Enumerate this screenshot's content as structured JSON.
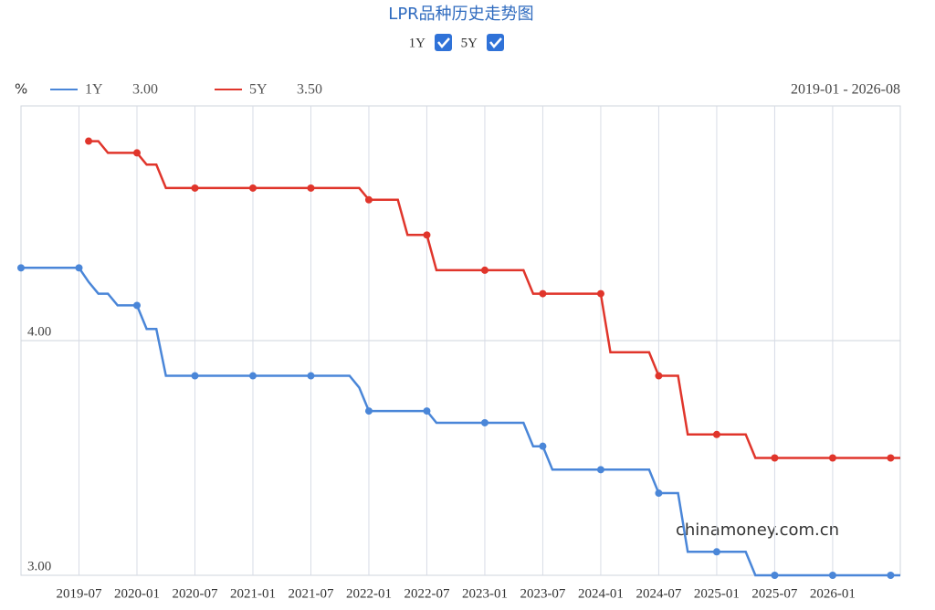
{
  "chart_data": {
    "type": "line",
    "title": "LPR品种历史走势图",
    "toggles": [
      {
        "label": "1Y",
        "checked": true
      },
      {
        "label": "5Y",
        "checked": true
      }
    ],
    "y_unit": "%",
    "range": "2019-01 - 2026-08",
    "watermark": "chinamoney.com.cn",
    "x": [
      "2019-01",
      "2019-02",
      "2019-03",
      "2019-04",
      "2019-05",
      "2019-06",
      "2019-07",
      "2019-08",
      "2019-09",
      "2019-10",
      "2019-11",
      "2019-12",
      "2020-01",
      "2020-02",
      "2020-03",
      "2020-04",
      "2020-05",
      "2020-06",
      "2020-07",
      "2020-08",
      "2020-09",
      "2020-10",
      "2020-11",
      "2020-12",
      "2021-01",
      "2021-02",
      "2021-03",
      "2021-04",
      "2021-05",
      "2021-06",
      "2021-07",
      "2021-08",
      "2021-09",
      "2021-10",
      "2021-11",
      "2021-12",
      "2022-01",
      "2022-02",
      "2022-03",
      "2022-04",
      "2022-05",
      "2022-06",
      "2022-07",
      "2022-08",
      "2022-09",
      "2022-10",
      "2022-11",
      "2022-12",
      "2023-01",
      "2023-02",
      "2023-03",
      "2023-04",
      "2023-05",
      "2023-06",
      "2023-07",
      "2023-08",
      "2023-09",
      "2023-10",
      "2023-11",
      "2023-12",
      "2024-01",
      "2024-02",
      "2024-03",
      "2024-04",
      "2024-05",
      "2024-06",
      "2024-07",
      "2024-08",
      "2024-09",
      "2024-10",
      "2024-11",
      "2024-12",
      "2025-01",
      "2025-02",
      "2025-03",
      "2025-04",
      "2025-05",
      "2025-06",
      "2025-07",
      "2025-08",
      "2025-09",
      "2025-10",
      "2025-11",
      "2025-12",
      "2026-01",
      "2026-02",
      "2026-03",
      "2026-04",
      "2026-05",
      "2026-06",
      "2026-07",
      "2026-08"
    ],
    "xticks": [
      6,
      12,
      18,
      24,
      30,
      36,
      42,
      48,
      54,
      60,
      66,
      72,
      78,
      84
    ],
    "series": [
      {
        "name": "1Y",
        "color": "#4a86d8",
        "last_label": "3.00",
        "values": [
          4.31,
          4.31,
          4.31,
          4.31,
          4.31,
          4.31,
          4.31,
          4.25,
          4.2,
          4.2,
          4.15,
          4.15,
          4.15,
          4.05,
          4.05,
          3.85,
          3.85,
          3.85,
          3.85,
          3.85,
          3.85,
          3.85,
          3.85,
          3.85,
          3.85,
          3.85,
          3.85,
          3.85,
          3.85,
          3.85,
          3.85,
          3.85,
          3.85,
          3.85,
          3.85,
          3.8,
          3.7,
          3.7,
          3.7,
          3.7,
          3.7,
          3.7,
          3.7,
          3.65,
          3.65,
          3.65,
          3.65,
          3.65,
          3.65,
          3.65,
          3.65,
          3.65,
          3.65,
          3.55,
          3.55,
          3.45,
          3.45,
          3.45,
          3.45,
          3.45,
          3.45,
          3.45,
          3.45,
          3.45,
          3.45,
          3.45,
          3.35,
          3.35,
          3.35,
          3.1,
          3.1,
          3.1,
          3.1,
          3.1,
          3.1,
          3.1,
          3.0,
          3.0,
          3.0,
          3.0,
          3.0,
          3.0,
          3.0,
          3.0,
          3.0,
          3.0,
          3.0,
          3.0,
          3.0,
          3.0,
          3.0,
          3.0
        ]
      },
      {
        "name": "5Y",
        "color": "#e0352b",
        "last_label": "3.50",
        "values": [
          null,
          null,
          null,
          null,
          null,
          null,
          null,
          4.85,
          4.85,
          4.8,
          4.8,
          4.8,
          4.8,
          4.75,
          4.75,
          4.65,
          4.65,
          4.65,
          4.65,
          4.65,
          4.65,
          4.65,
          4.65,
          4.65,
          4.65,
          4.65,
          4.65,
          4.65,
          4.65,
          4.65,
          4.65,
          4.65,
          4.65,
          4.65,
          4.65,
          4.65,
          4.6,
          4.6,
          4.6,
          4.6,
          4.45,
          4.45,
          4.45,
          4.3,
          4.3,
          4.3,
          4.3,
          4.3,
          4.3,
          4.3,
          4.3,
          4.3,
          4.3,
          4.2,
          4.2,
          4.2,
          4.2,
          4.2,
          4.2,
          4.2,
          4.2,
          3.95,
          3.95,
          3.95,
          3.95,
          3.95,
          3.85,
          3.85,
          3.85,
          3.6,
          3.6,
          3.6,
          3.6,
          3.6,
          3.6,
          3.6,
          3.5,
          3.5,
          3.5,
          3.5,
          3.5,
          3.5,
          3.5,
          3.5,
          3.5,
          3.5,
          3.5,
          3.5,
          3.5,
          3.5,
          3.5,
          3.5
        ]
      }
    ],
    "ylim": [
      3,
      5
    ],
    "yticks": [
      {
        "value": 3,
        "label": "3.00"
      },
      {
        "value": 4,
        "label": "4.00"
      }
    ],
    "grid": true
  }
}
